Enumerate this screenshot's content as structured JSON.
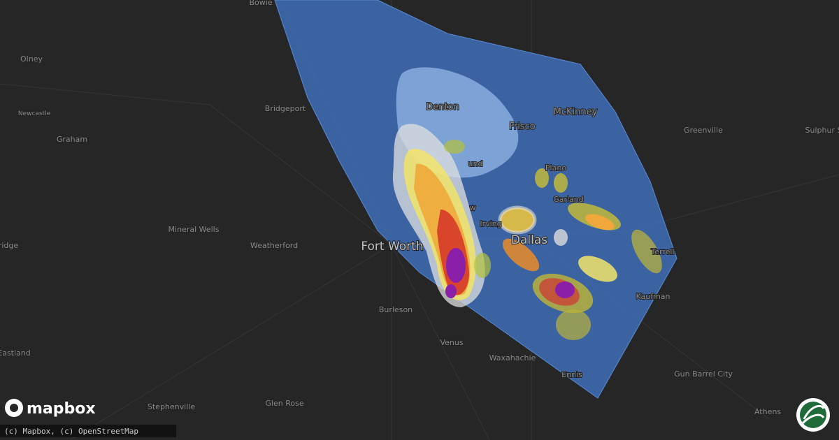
{
  "map": {
    "places": [
      "Bowie",
      "Olney",
      "Newcastle",
      "Graham",
      "Bridgeport",
      "Denton",
      "Frisco",
      "McKinney",
      "Greenville",
      "Sulphur S",
      "Plano",
      "Garland",
      "und",
      "w",
      "Irving",
      "Dallas",
      "Mineral Wells",
      "Weatherford",
      "Fort Worth",
      "Terrell",
      "Kaufman",
      "ridge",
      "Burleson",
      "Venus",
      "Eastland",
      "Waxahachie",
      "Ennis",
      "Gun Barrel City",
      "Glen Rose",
      "Stephenville",
      "Athens"
    ]
  },
  "logo": "mapbox",
  "attribution": "(c) Mapbox, (c) OpenStreetMap"
}
